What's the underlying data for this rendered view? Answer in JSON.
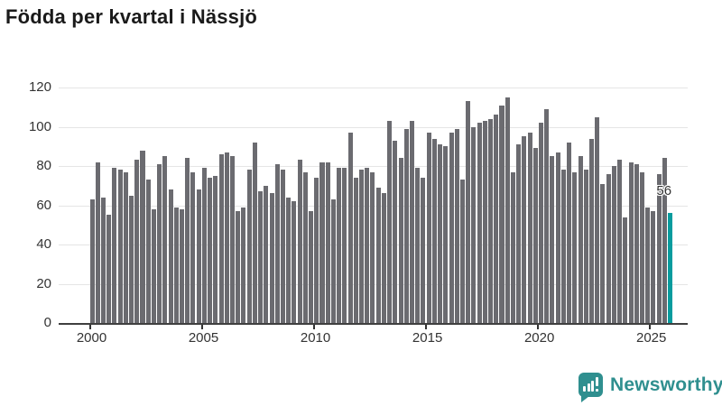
{
  "title": "Födda per kvartal i Nässjö",
  "logo": {
    "text": "Newsworthy",
    "color": "#2f8f8f"
  },
  "chart_data": {
    "type": "bar",
    "title": "Födda per kvartal i Nässjö",
    "xlabel": "",
    "ylabel": "",
    "ylim": [
      0,
      120
    ],
    "grid": "horizontal",
    "y_ticks": [
      0,
      20,
      40,
      60,
      80,
      100,
      120
    ],
    "x_tick_labels": [
      "2000",
      "2005",
      "2010",
      "2015",
      "2020",
      "2025"
    ],
    "x_start": "2000 Q1",
    "x_end": "2025 Q4",
    "quarters_per_year": 4,
    "values": [
      63,
      82,
      64,
      55,
      79,
      78,
      77,
      65,
      83,
      88,
      73,
      58,
      81,
      85,
      68,
      59,
      58,
      84,
      77,
      68,
      79,
      74,
      75,
      86,
      87,
      85,
      57,
      59,
      78,
      92,
      67,
      70,
      66,
      81,
      78,
      64,
      62,
      83,
      77,
      57,
      74,
      82,
      82,
      63,
      79,
      79,
      97,
      74,
      78,
      79,
      77,
      69,
      66,
      103,
      93,
      84,
      99,
      103,
      79,
      74,
      97,
      94,
      91,
      90,
      97,
      99,
      73,
      113,
      100,
      102,
      103,
      104,
      106,
      111,
      115,
      77,
      91,
      95,
      97,
      89,
      102,
      109,
      85,
      87,
      78,
      92,
      77,
      85,
      78,
      94,
      105,
      71,
      76,
      80,
      83,
      54,
      82,
      81,
      77,
      59,
      57,
      76,
      84,
      56
    ],
    "highlight_index": 103,
    "highlight_label": "56",
    "colors": {
      "bar": "#6b6b70",
      "highlight": "#089c9e",
      "gridline": "#e5e5e5",
      "axis": "#3f3f3f",
      "text": "#333333",
      "title_text": "#1a1a1a"
    }
  }
}
